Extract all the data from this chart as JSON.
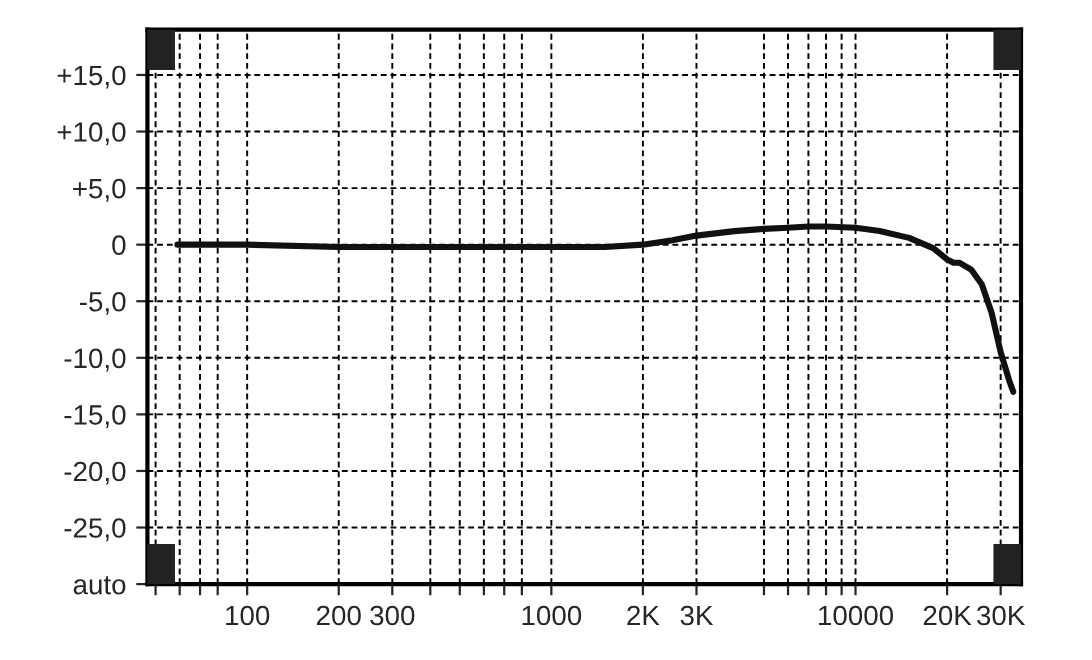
{
  "chart_data": {
    "type": "line",
    "log": "x",
    "grid": true,
    "marker": "none",
    "line_style": "solid",
    "x": [
      59,
      100,
      200,
      500,
      1000,
      1500,
      2000,
      2500,
      3000,
      4000,
      5000,
      6000,
      7000,
      8000,
      10000,
      12000,
      15000,
      18000,
      20000,
      21000,
      22000,
      24000,
      26000,
      28000,
      30000,
      32000,
      33000
    ],
    "series": [
      {
        "color": "#111111",
        "values": [
          0,
          0,
          -0.2,
          -0.2,
          -0.2,
          -0.2,
          0,
          0.4,
          0.8,
          1.2,
          1.4,
          1.5,
          1.6,
          1.6,
          1.5,
          1.2,
          0.6,
          -0.3,
          -1.3,
          -1.6,
          -1.6,
          -2.2,
          -3.5,
          -6,
          -9.5,
          -12,
          -13
        ]
      }
    ],
    "xlim": [
      47,
      35000
    ],
    "xticks": [
      {
        "value": 50,
        "label": null
      },
      {
        "value": 60,
        "label": null
      },
      {
        "value": 70,
        "label": null
      },
      {
        "value": 80,
        "label": null
      },
      {
        "value": 100,
        "label": "100"
      },
      {
        "value": 200,
        "label": "200"
      },
      {
        "value": 300,
        "label": "300"
      },
      {
        "value": 400,
        "label": null
      },
      {
        "value": 500,
        "label": null
      },
      {
        "value": 600,
        "label": null
      },
      {
        "value": 700,
        "label": null
      },
      {
        "value": 800,
        "label": null
      },
      {
        "value": 1000,
        "label": "1000"
      },
      {
        "value": 2000,
        "label": "2K"
      },
      {
        "value": 3000,
        "label": "3K"
      },
      {
        "value": 5000,
        "label": null
      },
      {
        "value": 6000,
        "label": null
      },
      {
        "value": 7000,
        "label": null
      },
      {
        "value": 8000,
        "label": null
      },
      {
        "value": 9000,
        "label": null
      },
      {
        "value": 10000,
        "label": "10000"
      },
      {
        "value": 20000,
        "label": "20K"
      },
      {
        "value": 30000,
        "label": "30K"
      }
    ],
    "ylim": [
      -30,
      19
    ],
    "yticks": [
      {
        "value": -30,
        "label": "auto"
      },
      {
        "value": -25,
        "label": "-25,0"
      },
      {
        "value": -20,
        "label": "-20,0"
      },
      {
        "value": -15,
        "label": "-15,0"
      },
      {
        "value": -10,
        "label": "-10,0"
      },
      {
        "value": -5,
        "label": "-5,0"
      },
      0,
      {
        "value": 5,
        "label": "+5,0"
      },
      {
        "value": 10,
        "label": "+10,0"
      },
      {
        "value": 15,
        "label": "+15,0"
      }
    ]
  }
}
